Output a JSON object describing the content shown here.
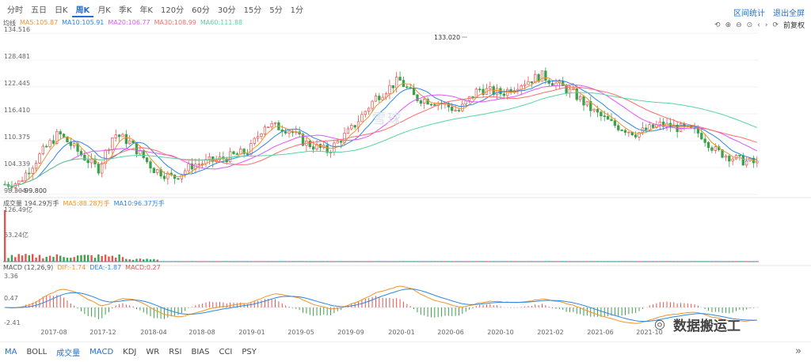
{
  "period_tabs": [
    {
      "label": "分时"
    },
    {
      "label": "五日"
    },
    {
      "label": "日K"
    },
    {
      "label": "周K",
      "active": true
    },
    {
      "label": "月K"
    },
    {
      "label": "季K"
    },
    {
      "label": "年K"
    },
    {
      "label": "120分"
    },
    {
      "label": "60分"
    },
    {
      "label": "30分"
    },
    {
      "label": "15分"
    },
    {
      "label": "5分"
    },
    {
      "label": "1分"
    }
  ],
  "top_right": {
    "range_stats": "区间统计",
    "exit_fullscreen": "退出全屏"
  },
  "ma_legend": {
    "title": "均线",
    "ma5": "MA5:105.87",
    "ma10": "MA10:105.91",
    "ma20": "MA20:106.77",
    "ma30": "MA30:108.99",
    "ma60": "MA60:111.88"
  },
  "controls": {
    "adjust": "前复权"
  },
  "price_axis": [
    "134.516",
    "128.481",
    "122.445",
    "116.410",
    "110.375",
    "104.339",
    "98.304"
  ],
  "annotations": {
    "high": "133.020",
    "low": "99.800"
  },
  "volume_legend": {
    "title": "成交量 194.29万手",
    "ma5": "MA5:88.28万手",
    "ma10": "MA10:96.37万手"
  },
  "volume_axis": [
    "126.49亿",
    "63.24亿"
  ],
  "macd_legend": {
    "title": "MACD (12,26,9)",
    "dif": "DIF:-1.74",
    "dea": "DEA:-1.87",
    "macd": "MACD:0.27"
  },
  "macd_axis": [
    "3.36",
    "0.47",
    "-2.41"
  ],
  "date_axis": [
    "2017-08",
    "2017-12",
    "2018-04",
    "2018-08",
    "2019-01",
    "2019-05",
    "2019-09",
    "2020-01",
    "2020-06",
    "2020-10",
    "2021-02",
    "2021-06",
    "2021-10"
  ],
  "bottom_tabs": [
    {
      "label": "MA",
      "active": true
    },
    {
      "label": "BOLL"
    },
    {
      "label": "成交量",
      "active": true
    },
    {
      "label": "MACD",
      "active": true
    },
    {
      "label": "KDJ"
    },
    {
      "label": "WR"
    },
    {
      "label": "RSI"
    },
    {
      "label": "BIAS"
    },
    {
      "label": "CCI"
    },
    {
      "label": "PSY"
    }
  ],
  "more_glyph": "»",
  "watermark": "雪球",
  "brand_watermark": "数据搬运工",
  "colors": {
    "up": "#e4544e",
    "down": "#3aa14a",
    "ma5": "#f0932b",
    "ma10": "#2e86de",
    "ma20": "#e056fd",
    "ma30": "#ff6b6b",
    "ma60": "#55d6a0",
    "link": "#1e6fd9"
  }
}
